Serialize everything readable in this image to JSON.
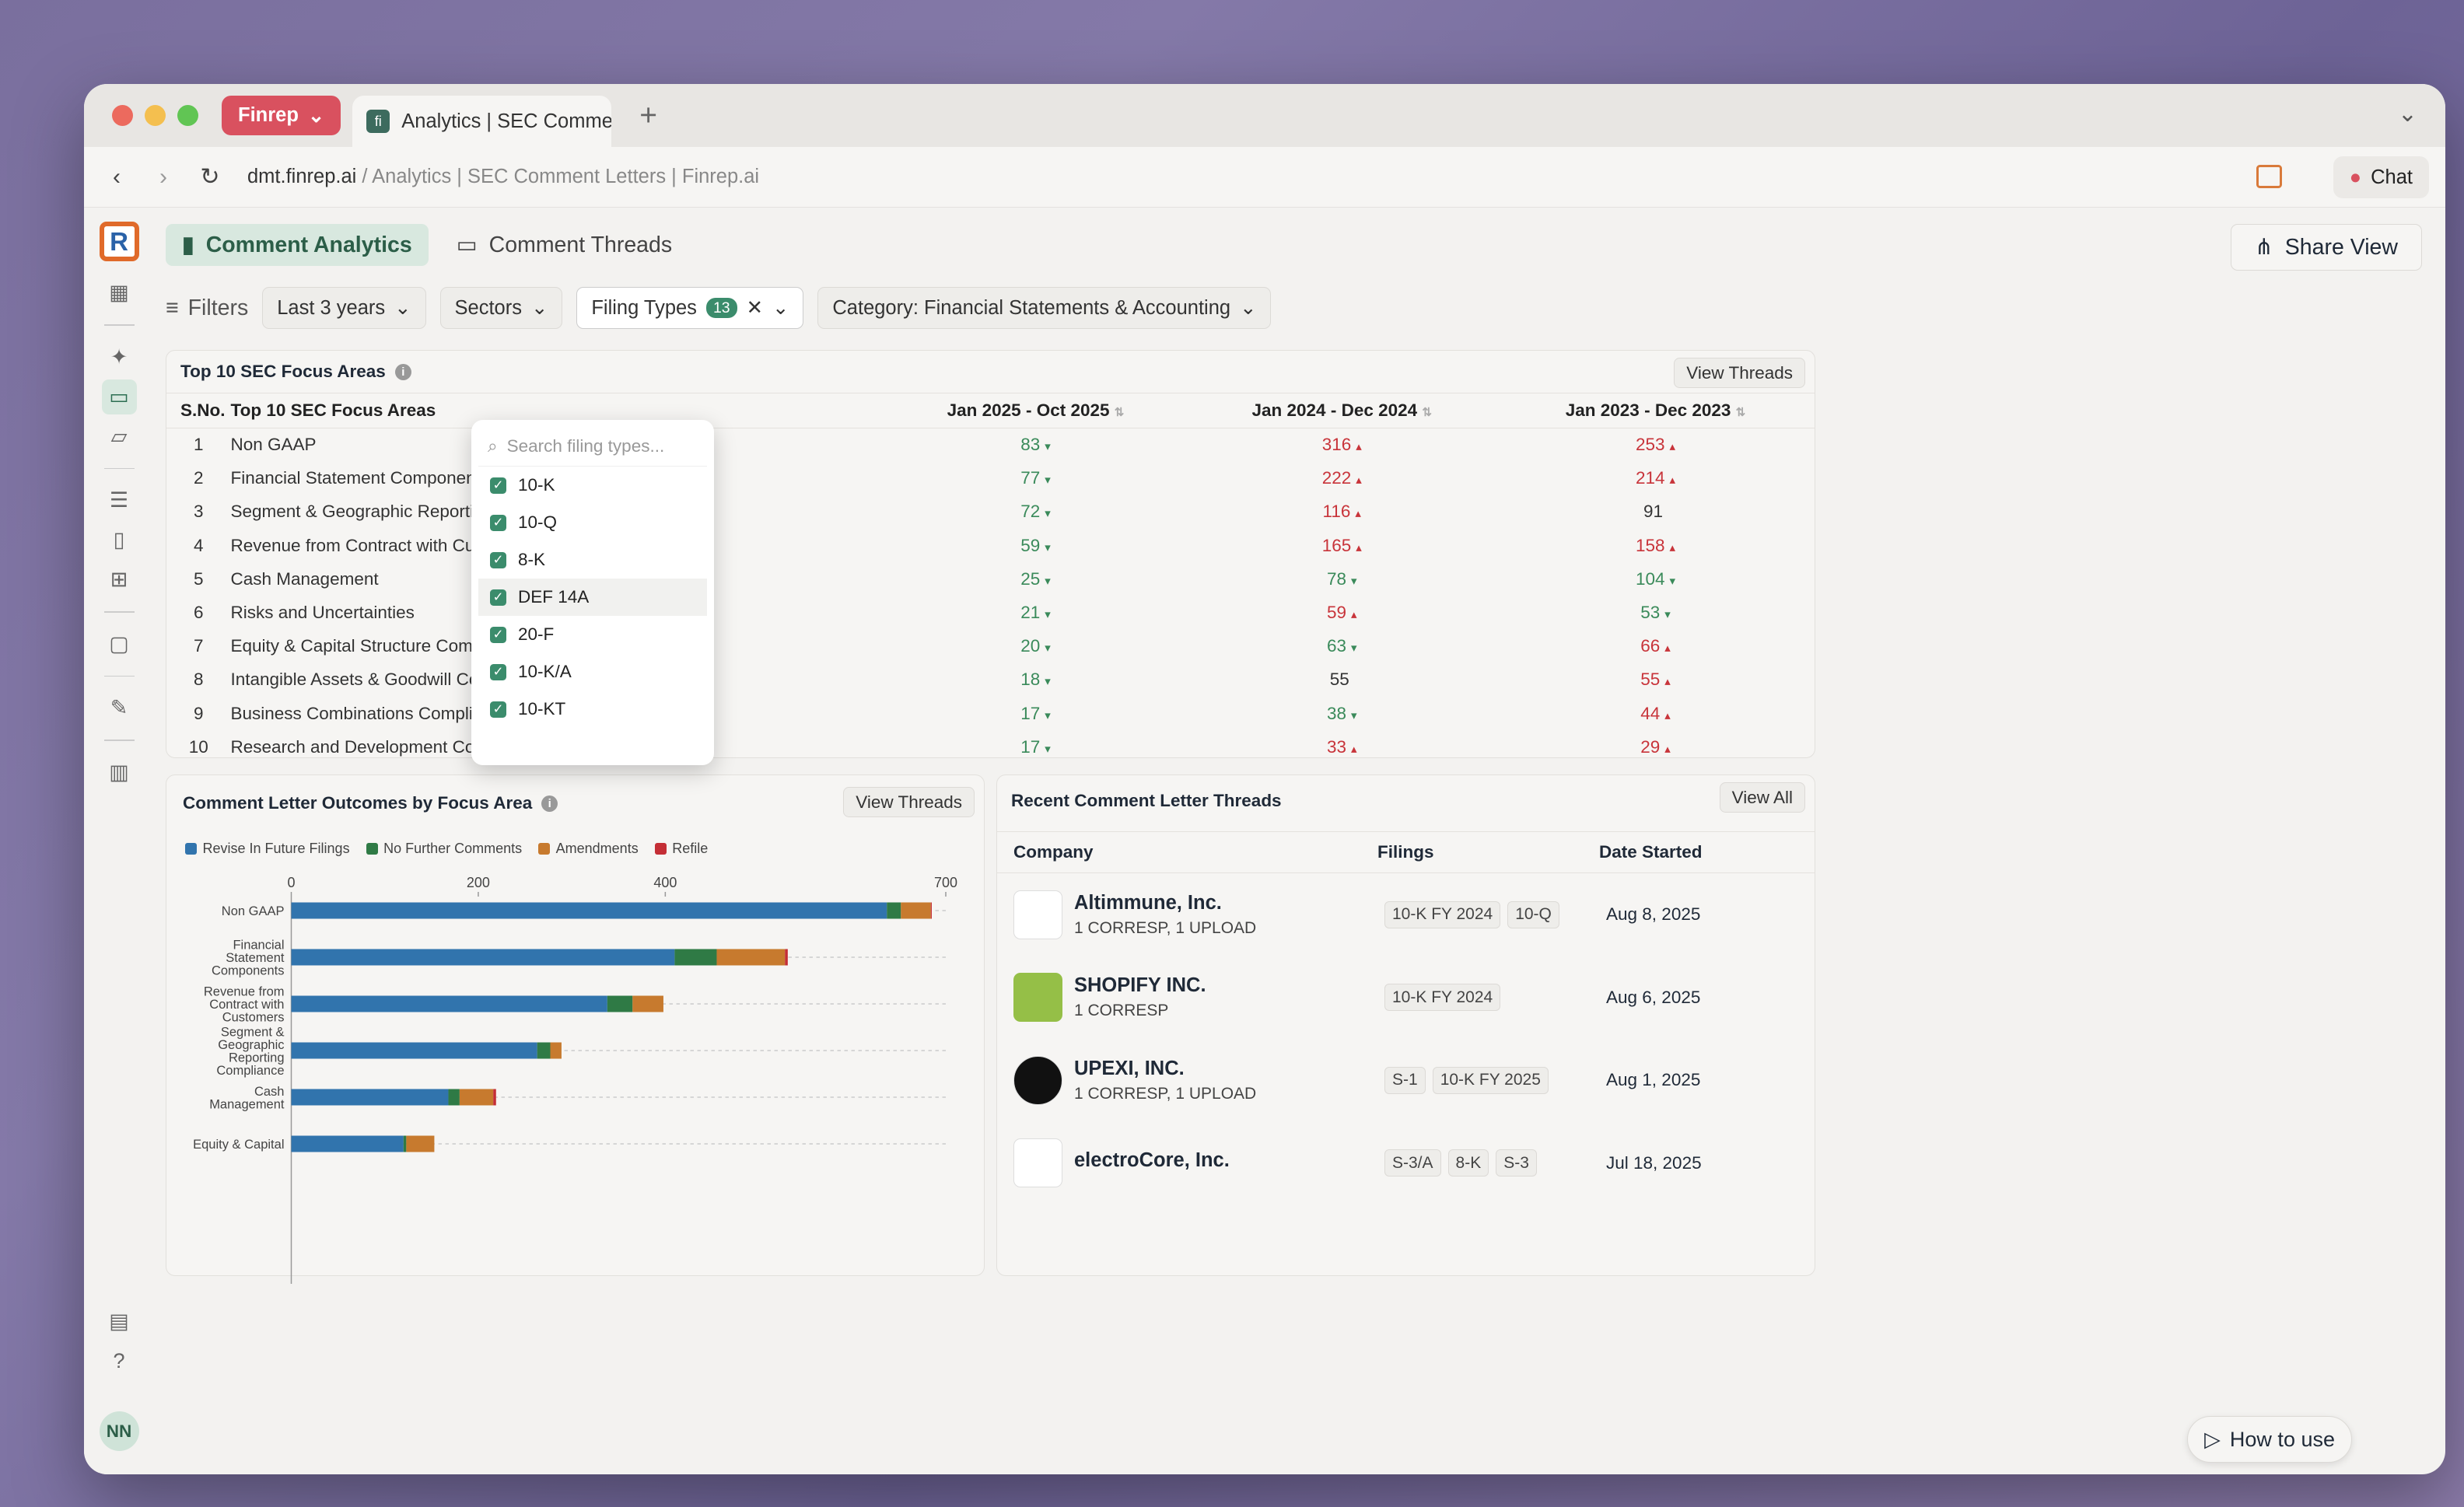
{
  "browser": {
    "finrep_tab": "Finrep",
    "active_tab": "Analytics | SEC Comme",
    "new_tab": "+",
    "url_domain": "dmt.finrep.ai",
    "url_rest": " / Analytics | SEC Comment Letters | Finrep.ai",
    "chat": "Chat"
  },
  "nav": {
    "analytics": "Comment Analytics",
    "threads": "Comment Threads",
    "share": "Share View"
  },
  "filters": {
    "label": "Filters",
    "period": "Last 3 years",
    "sectors": "Sectors",
    "filing_types": "Filing Types",
    "filing_count": "13",
    "category": "Category: Financial Statements & Accounting"
  },
  "dropdown": {
    "placeholder": "Search filing types...",
    "items": [
      "10-K",
      "10-Q",
      "8-K",
      "DEF 14A",
      "20-F",
      "10-K/A",
      "10-KT"
    ]
  },
  "focus": {
    "title": "Top 10 SEC Focus Areas",
    "view": "View Threads",
    "headers": [
      "S.No.",
      "Top 10 SEC Focus Areas",
      "Jan 2025 - Oct 2025",
      "Jan 2024 - Dec 2024",
      "Jan 2023 - Dec 2023"
    ],
    "rows": [
      {
        "n": "1",
        "name": "Non GAAP",
        "a": "83",
        "ad": "▾",
        "ac": "g",
        "b": "316",
        "bd": "▴",
        "bc": "r",
        "c": "253",
        "cd": "▴",
        "cc": "r"
      },
      {
        "n": "2",
        "name": "Financial Statement Components",
        "a": "77",
        "ad": "▾",
        "ac": "g",
        "b": "222",
        "bd": "▴",
        "bc": "r",
        "c": "214",
        "cd": "▴",
        "cc": "r"
      },
      {
        "n": "3",
        "name": "Segment & Geographic Reporting",
        "a": "72",
        "ad": "▾",
        "ac": "g",
        "b": "116",
        "bd": "▴",
        "bc": "r",
        "c": "91",
        "cd": "",
        "cc": "n"
      },
      {
        "n": "4",
        "name": "Revenue from Contract with Custo",
        "a": "59",
        "ad": "▾",
        "ac": "g",
        "b": "165",
        "bd": "▴",
        "bc": "r",
        "c": "158",
        "cd": "▴",
        "cc": "r"
      },
      {
        "n": "5",
        "name": "Cash Management",
        "a": "25",
        "ad": "▾",
        "ac": "g",
        "b": "78",
        "bd": "▾",
        "bc": "g",
        "c": "104",
        "cd": "▾",
        "cc": "g"
      },
      {
        "n": "6",
        "name": "Risks and Uncertainties",
        "a": "21",
        "ad": "▾",
        "ac": "g",
        "b": "59",
        "bd": "▴",
        "bc": "r",
        "c": "53",
        "cd": "▾",
        "cc": "g"
      },
      {
        "n": "7",
        "name": "Equity & Capital Structure Compliance",
        "a": "20",
        "ad": "▾",
        "ac": "g",
        "b": "63",
        "bd": "▾",
        "bc": "g",
        "c": "66",
        "cd": "▴",
        "cc": "r"
      },
      {
        "n": "8",
        "name": "Intangible Assets & Goodwill Compliance",
        "a": "18",
        "ad": "▾",
        "ac": "g",
        "b": "55",
        "bd": "",
        "bc": "n",
        "c": "55",
        "cd": "▴",
        "cc": "r"
      },
      {
        "n": "9",
        "name": "Business Combinations Compliance",
        "a": "17",
        "ad": "▾",
        "ac": "g",
        "b": "38",
        "bd": "▾",
        "bc": "g",
        "c": "44",
        "cd": "▴",
        "cc": "r"
      },
      {
        "n": "10",
        "name": "Research and Development Compliance",
        "a": "17",
        "ad": "▾",
        "ac": "g",
        "b": "33",
        "bd": "▴",
        "bc": "r",
        "c": "29",
        "cd": "▴",
        "cc": "r"
      }
    ]
  },
  "outcomes": {
    "title": "Comment Letter Outcomes by Focus Area",
    "view": "View Threads"
  },
  "chart_data": {
    "type": "bar",
    "orientation": "horizontal",
    "stacked": true,
    "xlim": [
      0,
      700
    ],
    "xticks": [
      "0",
      "200",
      "400",
      "700"
    ],
    "categories": [
      [
        "Non GAAP"
      ],
      [
        "Financial",
        "Statement",
        "Components"
      ],
      [
        "Revenue from",
        "Contract with",
        "Customers"
      ],
      [
        "Segment &",
        "Geographic",
        "Reporting",
        "Compliance"
      ],
      [
        "Cash",
        "Management"
      ],
      [
        "Equity & Capital"
      ]
    ],
    "series": [
      {
        "name": "Revise In Future Filings",
        "color": "#3174ad",
        "values": [
          637,
          410,
          338,
          263,
          168,
          120
        ]
      },
      {
        "name": "No Further Comments",
        "color": "#2f7a45",
        "values": [
          15,
          45,
          27,
          14,
          12,
          3
        ]
      },
      {
        "name": "Amendments",
        "color": "#c77a2e",
        "values": [
          32,
          73,
          33,
          12,
          36,
          30
        ]
      },
      {
        "name": "Refile",
        "color": "#c42e35",
        "values": [
          1,
          3,
          0,
          0,
          3,
          0
        ]
      }
    ]
  },
  "recent": {
    "title": "Recent Comment Letter Threads",
    "view": "View All",
    "headers": [
      "Company",
      "Filings",
      "Date Started"
    ],
    "rows": [
      {
        "company": "Altimmune, Inc.",
        "sub": "1 CORRESP, 1 UPLOAD",
        "tags": [
          "10-K FY 2024",
          "10-Q"
        ],
        "date": "Aug 8, 2025"
      },
      {
        "company": "SHOPIFY INC.",
        "sub": "1 CORRESP",
        "tags": [
          "10-K FY 2024"
        ],
        "date": "Aug 6, 2025"
      },
      {
        "company": "UPEXI, INC.",
        "sub": "1 CORRESP, 1 UPLOAD",
        "tags": [
          "S-1",
          "10-K FY 2025"
        ],
        "date": "Aug 1, 2025"
      },
      {
        "company": "electroCore, Inc.",
        "sub": "",
        "tags": [
          "S-3/A",
          "8-K",
          "S-3"
        ],
        "date": "Jul 18, 2025"
      }
    ]
  },
  "howto": "How to use",
  "avatar": "NN"
}
